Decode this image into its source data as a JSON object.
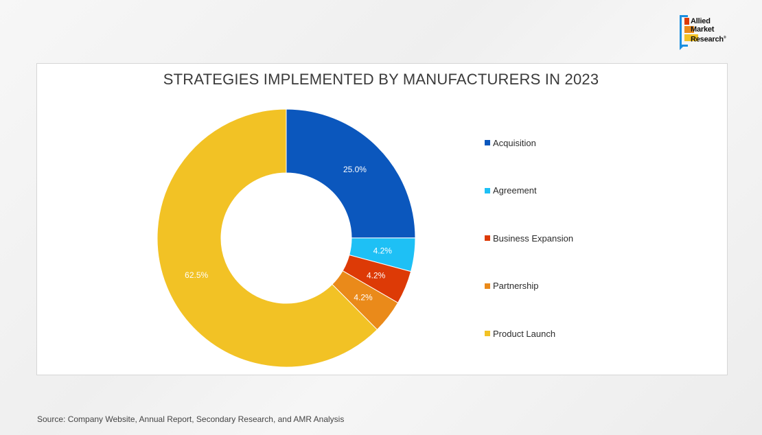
{
  "logo": {
    "line1": "Allied",
    "line2": "Market",
    "line3": "Research",
    "registered": "®"
  },
  "chart_data": {
    "type": "pie",
    "title": "STRATEGIES IMPLEMENTED BY MANUFACTURERS IN 2023",
    "donut": true,
    "legend_position": "right",
    "categories": [
      "Acquisition",
      "Agreement",
      "Business Expansion",
      "Partnership",
      "Product Launch"
    ],
    "values": [
      25.0,
      4.2,
      4.2,
      4.2,
      62.5
    ],
    "labels": [
      "25.0%",
      "4.2%",
      "4.2%",
      "4.2%",
      "62.5%"
    ],
    "colors": [
      "#0B57BD",
      "#1EC0F5",
      "#DD3A06",
      "#EA8A1A",
      "#F2C225"
    ]
  },
  "source": "Source: Company Website, Annual Report, Secondary Research, and AMR Analysis"
}
